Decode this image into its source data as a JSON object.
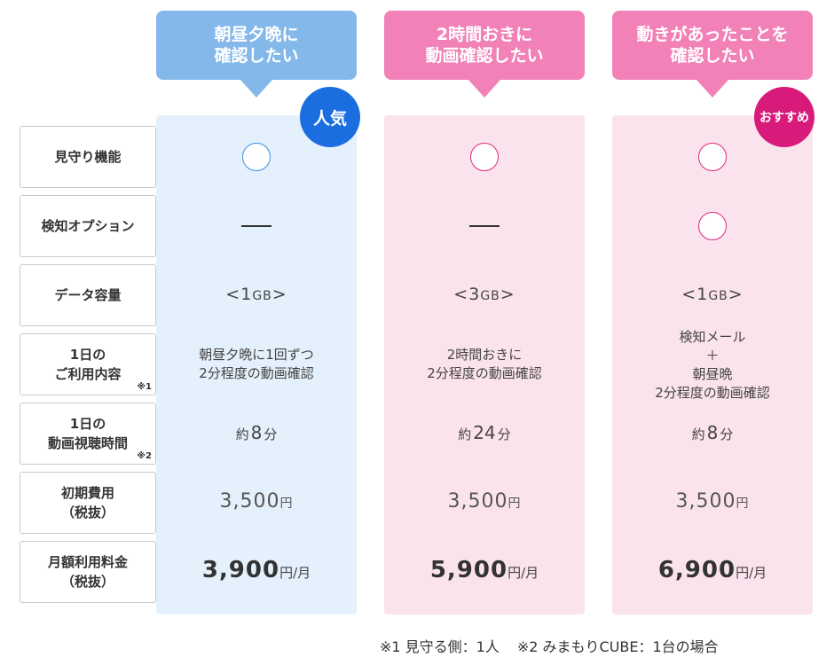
{
  "plans": [
    {
      "header": [
        "朝昼夕晩に",
        "確認したい"
      ],
      "badge": "人気",
      "monitoring": "circle",
      "detection": "dash",
      "data_num": "1",
      "data_unit": "GB",
      "usage": [
        "朝昼夕晩に1回ずつ",
        "2分程度の動画確認"
      ],
      "minutes": "8",
      "initial": "3,500",
      "monthly": "3,900"
    },
    {
      "header": [
        "2時間おきに",
        "動画確認したい"
      ],
      "badge": "",
      "monitoring": "circle",
      "detection": "dash",
      "data_num": "3",
      "data_unit": "GB",
      "usage": [
        "2時間おきに",
        "2分程度の動画確認"
      ],
      "minutes": "24",
      "initial": "3,500",
      "monthly": "5,900"
    },
    {
      "header": [
        "動きがあったことを",
        "確認したい"
      ],
      "badge": "おすすめ",
      "monitoring": "circle",
      "detection": "circle",
      "data_num": "1",
      "data_unit": "GB",
      "usage": [
        "検知メール",
        "＋",
        "朝昼晩",
        "2分程度の動画確認"
      ],
      "minutes": "8",
      "initial": "3,500",
      "monthly": "6,900"
    }
  ],
  "rows": {
    "monitoring": [
      "見守り機能"
    ],
    "detection": [
      "検知オプション"
    ],
    "data": [
      "データ容量"
    ],
    "usage": [
      "1日の",
      "ご利用内容"
    ],
    "usage_note": "※1",
    "viewing": [
      "1日の",
      "動画視聴時間"
    ],
    "viewing_note": "※2",
    "initial": [
      "初期費用",
      "（税抜）"
    ],
    "monthly": [
      "月額利用料金",
      "（税抜）"
    ]
  },
  "units": {
    "minutes_prefix": "約",
    "minutes_suffix": "分",
    "yen": "円",
    "per_month": "円/月",
    "bracket_open": "<",
    "bracket_close": ">"
  },
  "footnotes": [
    "※1 見守る側：1人",
    "※2 みまもりCUBE：1台の場合"
  ],
  "colors": {
    "popular_badge": "#1a6ee0",
    "recommended_badge": "#d81a7a",
    "blue_header": "#84b8ea",
    "pink_header": "#f181b6",
    "blue_panel": "#e4f0fb",
    "pink_panel": "#fbe3ee"
  }
}
